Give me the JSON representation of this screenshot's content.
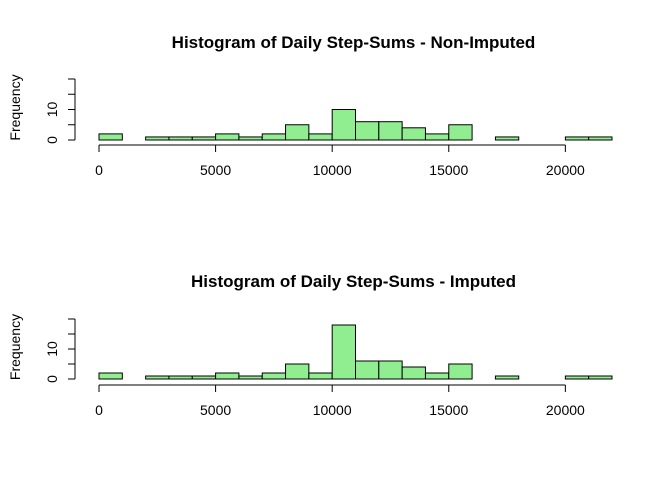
{
  "chart_data": [
    {
      "type": "bar",
      "title": "Histogram of Daily Step-Sums - Non-Imputed",
      "xlabel": "",
      "ylabel": "Frequency",
      "bin_width": 1000,
      "bin_starts": [
        0,
        1000,
        2000,
        3000,
        4000,
        5000,
        6000,
        7000,
        8000,
        9000,
        10000,
        11000,
        12000,
        13000,
        14000,
        15000,
        16000,
        17000,
        18000,
        19000,
        20000,
        21000
      ],
      "values": [
        2,
        0,
        1,
        1,
        1,
        2,
        1,
        2,
        5,
        2,
        10,
        6,
        6,
        4,
        2,
        5,
        0,
        1,
        0,
        0,
        1,
        1
      ],
      "xlim": [
        0,
        22000
      ],
      "ylim": [
        0,
        20
      ],
      "x_ticks": [
        0,
        5000,
        10000,
        15000,
        20000
      ],
      "x_tick_labels": [
        "0",
        "5000",
        "10000",
        "15000",
        "20000"
      ],
      "y_ticks": [
        0,
        5,
        10,
        15,
        20
      ],
      "y_tick_labels": [
        "0",
        "",
        "10",
        "",
        ""
      ],
      "bar_color": "#90EE90",
      "grid": false
    },
    {
      "type": "bar",
      "title": "Histogram of Daily Step-Sums - Imputed",
      "xlabel": "",
      "ylabel": "Frequency",
      "bin_width": 1000,
      "bin_starts": [
        0,
        1000,
        2000,
        3000,
        4000,
        5000,
        6000,
        7000,
        8000,
        9000,
        10000,
        11000,
        12000,
        13000,
        14000,
        15000,
        16000,
        17000,
        18000,
        19000,
        20000,
        21000
      ],
      "values": [
        2,
        0,
        1,
        1,
        1,
        2,
        1,
        2,
        5,
        2,
        18,
        6,
        6,
        4,
        2,
        5,
        0,
        1,
        0,
        0,
        1,
        1
      ],
      "xlim": [
        0,
        22000
      ],
      "ylim": [
        0,
        20
      ],
      "x_ticks": [
        0,
        5000,
        10000,
        15000,
        20000
      ],
      "x_tick_labels": [
        "0",
        "5000",
        "10000",
        "15000",
        "20000"
      ],
      "y_ticks": [
        0,
        5,
        10,
        15,
        20
      ],
      "y_tick_labels": [
        "0",
        "",
        "10",
        "",
        ""
      ],
      "bar_color": "#90EE90",
      "grid": false
    }
  ]
}
